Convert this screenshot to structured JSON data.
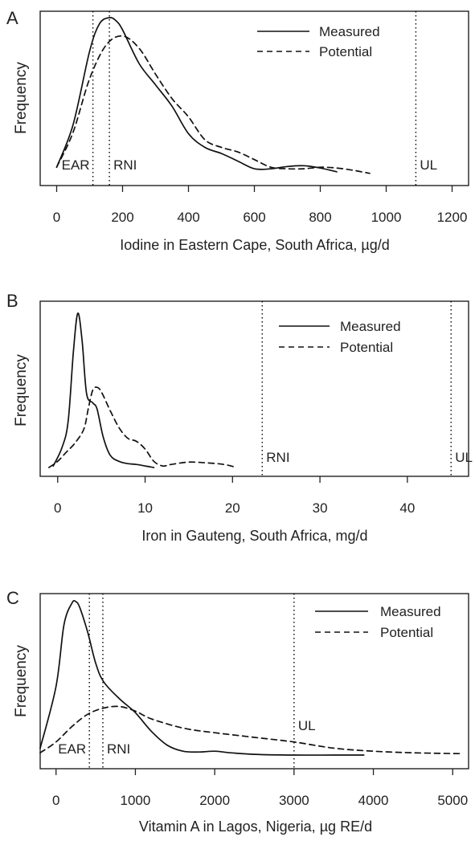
{
  "chart_data": [
    {
      "type": "line",
      "panel": "A",
      "xlabel": "Iodine in Eastern Cape, South Africa, µg/d",
      "ylabel": "Frequency",
      "xlim": [
        -50,
        1250
      ],
      "ylim": [
        0,
        1.05
      ],
      "xticks": [
        0,
        200,
        400,
        600,
        800,
        1000,
        1200
      ],
      "legend": {
        "position": "top-right",
        "entries": [
          "Measured",
          "Potential"
        ]
      },
      "reference_lines": [
        {
          "label": "EAR",
          "x": 110
        },
        {
          "label": "RNI",
          "x": 160
        },
        {
          "label": "UL",
          "x": 1090
        }
      ],
      "series": [
        {
          "name": "Measured",
          "style": "solid",
          "x": [
            0,
            50,
            100,
            130,
            160,
            180,
            200,
            250,
            300,
            350,
            400,
            450,
            500,
            550,
            600,
            650,
            700,
            750,
            800,
            850
          ],
          "y": [
            0.02,
            0.3,
            0.78,
            0.96,
            1.0,
            0.98,
            0.92,
            0.7,
            0.56,
            0.42,
            0.24,
            0.15,
            0.11,
            0.06,
            0.01,
            0.01,
            0.025,
            0.03,
            0.015,
            -0.01
          ]
        },
        {
          "name": "Potential",
          "style": "dashed",
          "x": [
            0,
            50,
            100,
            150,
            200,
            250,
            300,
            350,
            400,
            450,
            500,
            550,
            600,
            650,
            700,
            750,
            800,
            850,
            900,
            950
          ],
          "y": [
            0.02,
            0.25,
            0.6,
            0.82,
            0.88,
            0.8,
            0.63,
            0.47,
            0.35,
            0.2,
            0.15,
            0.12,
            0.07,
            0.02,
            0.01,
            0.01,
            0.02,
            0.015,
            0.0,
            -0.02
          ]
        }
      ]
    },
    {
      "type": "line",
      "panel": "B",
      "xlabel": "Iron in Gauteng, South Africa, mg/d",
      "ylabel": "Frequency",
      "xlim": [
        -2,
        47
      ],
      "ylim": [
        0,
        1.05
      ],
      "xticks": [
        0,
        10,
        20,
        30,
        40
      ],
      "legend": {
        "position": "top-right",
        "entries": [
          "Measured",
          "Potential"
        ]
      },
      "reference_lines": [
        {
          "label": "RNI",
          "x": 23.4
        },
        {
          "label": "UL",
          "x": 45
        }
      ],
      "series": [
        {
          "name": "Measured",
          "style": "solid",
          "x": [
            -0.5,
            0.5,
            1.2,
            1.8,
            2.3,
            2.8,
            3.3,
            4.0,
            4.5,
            5.2,
            6.0,
            7.0,
            8.0,
            9.0,
            10.0,
            11.0
          ],
          "y": [
            0.01,
            0.13,
            0.3,
            0.75,
            1.0,
            0.82,
            0.48,
            0.42,
            0.38,
            0.2,
            0.08,
            0.04,
            0.025,
            0.02,
            0.01,
            0.0
          ]
        },
        {
          "name": "Potential",
          "style": "dashed",
          "x": [
            -1,
            0,
            1,
            2,
            3,
            3.5,
            4.0,
            4.5,
            5.0,
            6.0,
            7.0,
            8.0,
            9.0,
            10.0,
            11.0,
            12.0,
            13.0,
            15.0,
            17.0,
            19.0,
            20.5
          ],
          "y": [
            0.0,
            0.04,
            0.1,
            0.16,
            0.25,
            0.38,
            0.5,
            0.52,
            0.49,
            0.37,
            0.26,
            0.19,
            0.17,
            0.12,
            0.04,
            0.01,
            0.02,
            0.035,
            0.03,
            0.02,
            0.0
          ]
        }
      ]
    },
    {
      "type": "line",
      "panel": "C",
      "xlabel": "Vitamin A in Lagos, Nigeria, µg RE/d",
      "ylabel": "Frequency",
      "xlim": [
        -200,
        5200
      ],
      "ylim": [
        0,
        1.05
      ],
      "xticks": [
        0,
        1000,
        2000,
        3000,
        4000,
        5000
      ],
      "legend": {
        "position": "top-right",
        "entries": [
          "Measured",
          "Potential"
        ]
      },
      "reference_lines": [
        {
          "label": "EAR",
          "x": 420
        },
        {
          "label": "RNI",
          "x": 590
        },
        {
          "label": "UL",
          "x": 3000
        }
      ],
      "series": [
        {
          "name": "Measured",
          "style": "solid",
          "x": [
            -200,
            0,
            100,
            200,
            250,
            300,
            400,
            500,
            600,
            800,
            1000,
            1200,
            1400,
            1600,
            1800,
            2000,
            2200,
            2500,
            3000,
            3500,
            3880
          ],
          "y": [
            0.05,
            0.45,
            0.85,
            0.99,
            1.0,
            0.96,
            0.8,
            0.6,
            0.48,
            0.37,
            0.28,
            0.16,
            0.07,
            0.03,
            0.025,
            0.03,
            0.02,
            0.01,
            0.005,
            0.005,
            0.005
          ]
        },
        {
          "name": "Potential",
          "style": "dashed",
          "x": [
            -200,
            0,
            200,
            400,
            600,
            800,
            1000,
            1200,
            1600,
            2000,
            2500,
            3000,
            3500,
            4000,
            4500,
            5000,
            5100
          ],
          "y": [
            0.02,
            0.09,
            0.19,
            0.27,
            0.31,
            0.32,
            0.29,
            0.24,
            0.18,
            0.15,
            0.12,
            0.09,
            0.05,
            0.03,
            0.02,
            0.015,
            0.015
          ]
        }
      ]
    }
  ]
}
